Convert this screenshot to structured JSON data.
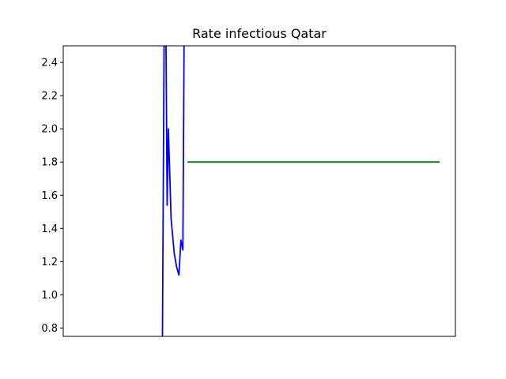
{
  "chart_data": {
    "type": "line",
    "title": "Rate infectious Qatar",
    "xlabel": "",
    "ylabel": "",
    "xlim": [
      0,
      100
    ],
    "ylim": [
      0.75,
      2.5
    ],
    "x_ticks_visible": false,
    "y_ticks": [
      0.8,
      1.0,
      1.2,
      1.4,
      1.6,
      1.8,
      2.0,
      2.2,
      2.4
    ],
    "y_tick_labels": [
      "0.8",
      "1.0",
      "1.2",
      "1.4",
      "1.6",
      "1.8",
      "2.0",
      "2.2",
      "2.4"
    ],
    "grid": false,
    "legend": "none",
    "series": [
      {
        "color": "#0000ff",
        "x": [
          25.3,
          25.7,
          26.2,
          26.5,
          26.8,
          27.2,
          27.5,
          28.3,
          28.9,
          29.5,
          30.0,
          30.5,
          30.8
        ],
        "y": [
          0.75,
          2.5,
          2.5,
          1.54,
          2.0,
          1.7,
          1.46,
          1.25,
          1.17,
          1.12,
          1.33,
          1.27,
          2.5
        ]
      },
      {
        "color": "#008000",
        "x": [
          31.7,
          96.0
        ],
        "y": [
          1.8,
          1.8
        ]
      }
    ]
  }
}
